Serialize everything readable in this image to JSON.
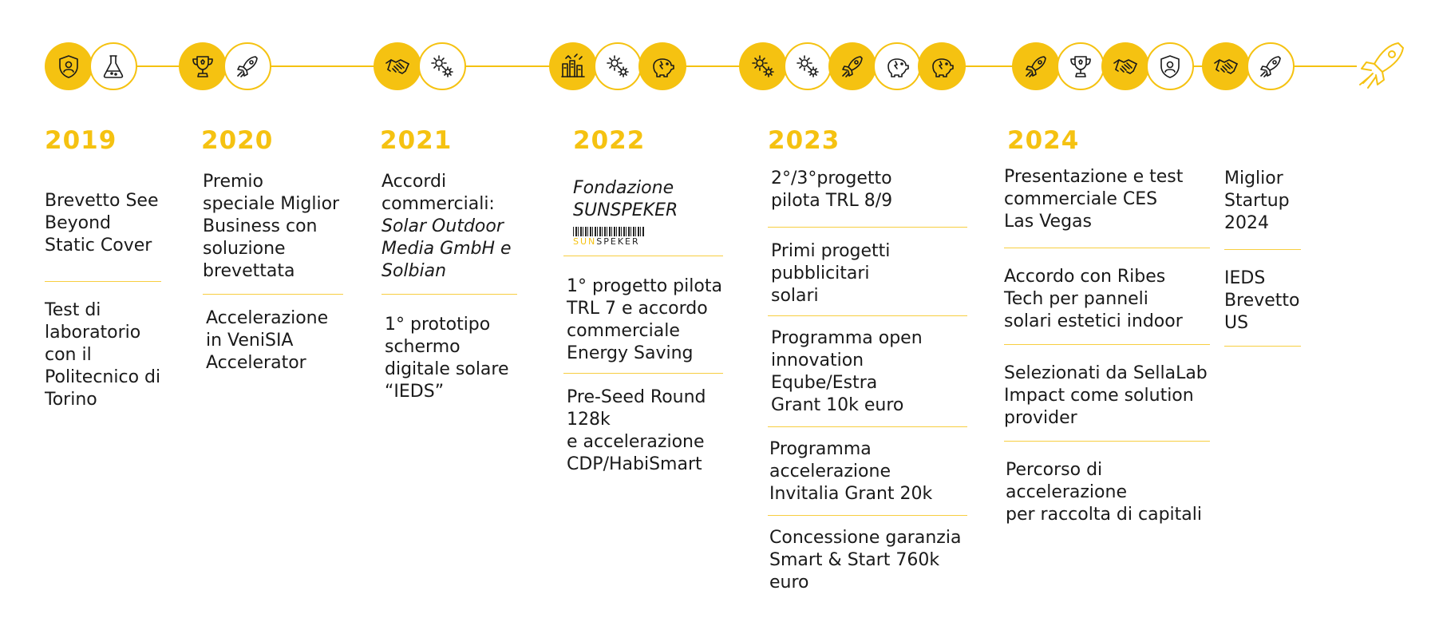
{
  "colors": {
    "accent": "#f5c211",
    "text": "#1a1a1a"
  },
  "icons": [
    {
      "name": "shield-user-icon",
      "style": "filled"
    },
    {
      "name": "flask-icon",
      "style": "outline"
    },
    {
      "name": "trophy-icon",
      "style": "filled"
    },
    {
      "name": "rocket-icon",
      "style": "outline"
    },
    {
      "name": "handshake-icon",
      "style": "filled"
    },
    {
      "name": "gears-icon",
      "style": "outline"
    },
    {
      "name": "solar-factory-icon",
      "style": "filled"
    },
    {
      "name": "gears-icon",
      "style": "outline"
    },
    {
      "name": "piggy-bank-icon",
      "style": "filled"
    },
    {
      "name": "gears-icon",
      "style": "filled"
    },
    {
      "name": "gears-icon",
      "style": "outline"
    },
    {
      "name": "rocket-icon",
      "style": "filled"
    },
    {
      "name": "piggy-bank-icon",
      "style": "outline"
    },
    {
      "name": "piggy-bank-icon",
      "style": "filled"
    },
    {
      "name": "rocket-icon",
      "style": "filled"
    },
    {
      "name": "trophy-icon",
      "style": "outline"
    },
    {
      "name": "handshake-icon",
      "style": "filled"
    },
    {
      "name": "shield-user-icon",
      "style": "outline"
    },
    {
      "name": "handshake-icon",
      "style": "filled"
    },
    {
      "name": "rocket-icon",
      "style": "outline"
    }
  ],
  "end_icon": "rocket-launch-icon",
  "years": {
    "y2019": "2019",
    "y2020": "2020",
    "y2021": "2021",
    "y2022": "2022",
    "y2023": "2023",
    "y2024": "2024"
  },
  "c2019": {
    "a": "Brevetto See\nBeyond\nStatic Cover",
    "b": "Test di\nlaboratorio\ncon il\nPolitecnico di\nTorino"
  },
  "c2020": {
    "a": "Premio\nspeciale Miglior\nBusiness con\nsoluzione\nbrevettata",
    "b": "Accelerazione\nin VeniSIA\nAccelerator"
  },
  "c2021": {
    "a1": "Accordi\ncommerciali:",
    "a2": "Solar Outdoor\nMedia GmbH e\nSolbian",
    "b": "1° prototipo\nschermo\ndigitale solare\n“IEDS”"
  },
  "c2022": {
    "a": "Fondazione\nSUNSPEKER",
    "logo_sun": "SUN",
    "logo_rest": "SPEKER",
    "b": "1° progetto pilota\nTRL 7 e accordo\ncommerciale\nEnergy Saving",
    "c": "Pre-Seed Round\n128k\ne accelerazione\nCDP/HabiSmart"
  },
  "c2023": {
    "a": "2°/3°progetto\npilota TRL 8/9",
    "b": "Primi progetti\npubblicitari\nsolari",
    "c": "Programma open\ninnovation\nEqube/Estra\nGrant 10k euro",
    "d": "Programma\naccelerazione\nInvitalia Grant 20k",
    "e": "Concessione garanzia\nSmart & Start 760k\neuro"
  },
  "c2024": {
    "a": "Presentazione e test\ncommerciale CES\nLas Vegas",
    "b": "Accordo con Ribes\nTech per panneli\nsolari estetici indoor",
    "c": "Selezionati da SellaLab\nImpact come solution\nprovider",
    "d": "Percorso di\naccelerazione\nper raccolta di capitali"
  },
  "c2024b": {
    "a": "Miglior\nStartup\n2024",
    "b": "IEDS\nBrevetto\nUS"
  }
}
